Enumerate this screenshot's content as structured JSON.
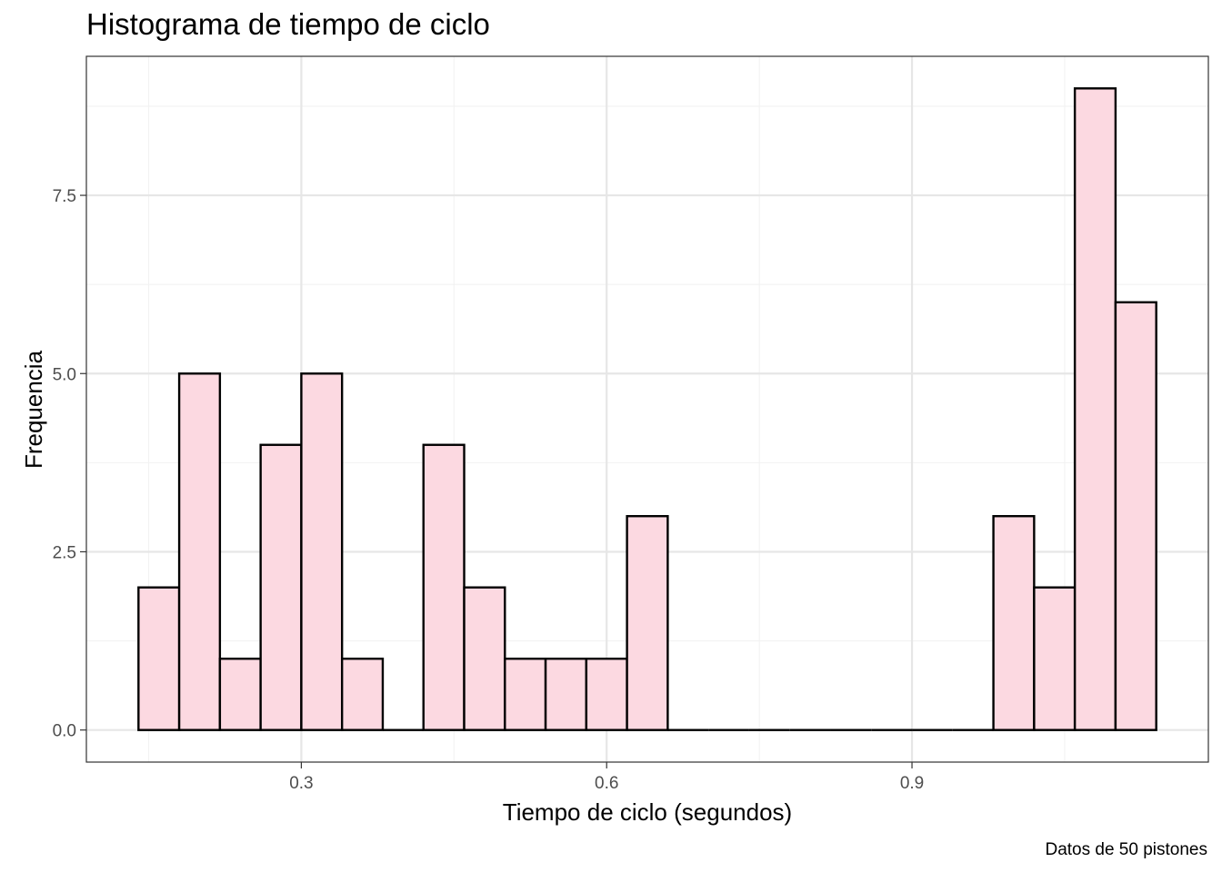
{
  "chart_data": {
    "type": "bar",
    "title": "Histograma de tiempo de ciclo",
    "xlabel": "Tiempo de ciclo (segundos)",
    "ylabel": "Frequencia",
    "caption": "Datos de 50 pistones",
    "bin_width": 0.04,
    "bins": [
      {
        "x0": 0.14,
        "x1": 0.18,
        "count": 2
      },
      {
        "x0": 0.18,
        "x1": 0.22,
        "count": 5
      },
      {
        "x0": 0.22,
        "x1": 0.26,
        "count": 1
      },
      {
        "x0": 0.26,
        "x1": 0.3,
        "count": 4
      },
      {
        "x0": 0.3,
        "x1": 0.34,
        "count": 5
      },
      {
        "x0": 0.34,
        "x1": 0.38,
        "count": 1
      },
      {
        "x0": 0.38,
        "x1": 0.42,
        "count": 0
      },
      {
        "x0": 0.42,
        "x1": 0.46,
        "count": 4
      },
      {
        "x0": 0.46,
        "x1": 0.5,
        "count": 2
      },
      {
        "x0": 0.5,
        "x1": 0.54,
        "count": 1
      },
      {
        "x0": 0.54,
        "x1": 0.58,
        "count": 1
      },
      {
        "x0": 0.58,
        "x1": 0.62,
        "count": 1
      },
      {
        "x0": 0.62,
        "x1": 0.66,
        "count": 3
      },
      {
        "x0": 0.66,
        "x1": 0.7,
        "count": 0
      },
      {
        "x0": 0.7,
        "x1": 0.74,
        "count": 0
      },
      {
        "x0": 0.74,
        "x1": 0.78,
        "count": 0
      },
      {
        "x0": 0.78,
        "x1": 0.82,
        "count": 0
      },
      {
        "x0": 0.82,
        "x1": 0.86,
        "count": 0
      },
      {
        "x0": 0.86,
        "x1": 0.9,
        "count": 0
      },
      {
        "x0": 0.9,
        "x1": 0.94,
        "count": 0
      },
      {
        "x0": 0.94,
        "x1": 0.98,
        "count": 0
      },
      {
        "x0": 0.98,
        "x1": 1.02,
        "count": 3
      },
      {
        "x0": 1.02,
        "x1": 1.06,
        "count": 2
      },
      {
        "x0": 1.06,
        "x1": 1.1,
        "count": 9
      },
      {
        "x0": 1.1,
        "x1": 1.14,
        "count": 6
      }
    ],
    "x_ticks": [
      {
        "value": 0.3,
        "label": "0.3"
      },
      {
        "value": 0.6,
        "label": "0.6"
      },
      {
        "value": 0.9,
        "label": "0.9"
      }
    ],
    "y_ticks": [
      {
        "value": 0,
        "label": "0.0"
      },
      {
        "value": 2.5,
        "label": "2.5"
      },
      {
        "value": 5,
        "label": "5.0"
      },
      {
        "value": 7.5,
        "label": "7.5"
      }
    ],
    "xlim": [
      0.0888,
      1.1912
    ],
    "ylim": [
      -0.45,
      9.45
    ],
    "grid": true,
    "legend": "none",
    "colors": {
      "bar_fill": "#fcd9e1",
      "bar_stroke": "#000000",
      "grid_major": "#e6e6e6",
      "grid_minor": "#f2f2f2",
      "panel_border": "#333333"
    }
  }
}
